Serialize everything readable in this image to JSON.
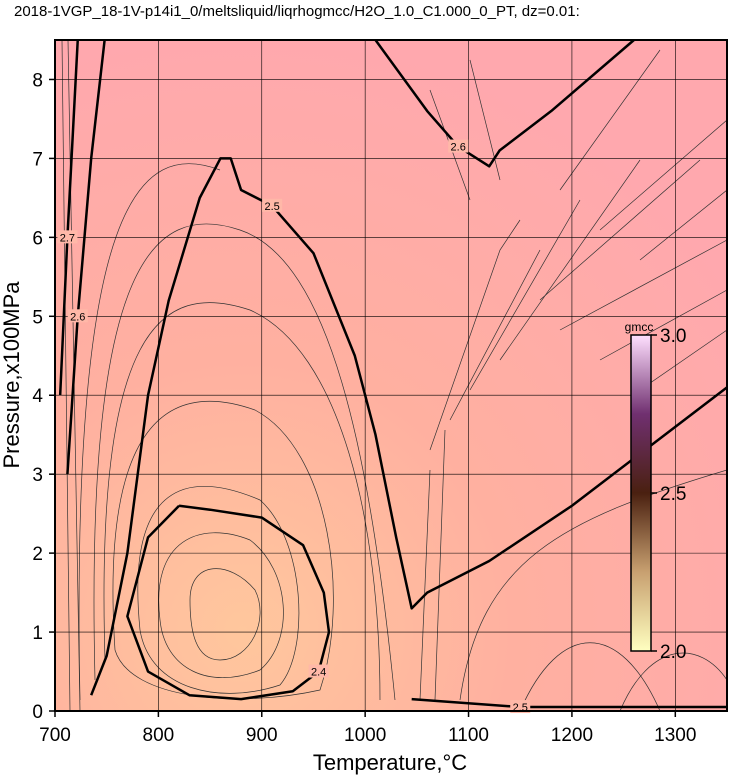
{
  "chart_data": {
    "type": "contour",
    "title": "2018-1VGP_18-1V-p14i1_0/meltsliquid/liqrhogmcc/H2O_1.0_C1.000_0_PT, dz=0.01:",
    "x_label": "Temperature,°C",
    "y_label": "Pressure,x100MPa",
    "xlim": [
      700,
      1350
    ],
    "ylim": [
      0,
      8.5
    ],
    "xticks": [
      700,
      800,
      900,
      1000,
      1100,
      1200,
      1300
    ],
    "yticks": [
      0,
      1,
      2,
      3,
      4,
      5,
      6,
      7,
      8
    ],
    "grid": true,
    "colorbar": {
      "label": "gmcc",
      "lim": [
        2.0,
        3.0
      ],
      "ticks": [
        {
          "value": 2.0,
          "label": "2.0"
        },
        {
          "value": 2.5,
          "label": "2.5"
        },
        {
          "value": 3.0,
          "label": "3.0"
        }
      ]
    },
    "contours": [
      {
        "level": 2.5,
        "x": [
          735,
          750,
          770,
          790,
          810,
          840,
          860,
          870,
          875,
          880,
          910,
          950,
          990,
          1010,
          1030,
          1040,
          1045,
          1060,
          1120,
          1200,
          1280,
          1350
        ],
        "y": [
          0.2,
          0.7,
          2,
          4,
          5.2,
          6.5,
          7,
          7,
          6.8,
          6.6,
          6.4,
          5.8,
          4.5,
          3.5,
          2.2,
          1.6,
          1.3,
          1.5,
          1.9,
          2.6,
          3.4,
          4.1
        ]
      },
      {
        "level": 2.4,
        "x": [
          820,
          850,
          900,
          940,
          960,
          965,
          955,
          930,
          880,
          830,
          790,
          770,
          790,
          820
        ],
        "y": [
          2.6,
          2.55,
          2.45,
          2.1,
          1.5,
          1.0,
          0.5,
          0.25,
          0.15,
          0.2,
          0.5,
          1.2,
          2.2,
          2.6
        ]
      },
      {
        "level": 2.6,
        "x": [
          1010,
          1060,
          1090,
          1120,
          1130,
          1180,
          1260
        ],
        "y": [
          8.5,
          7.6,
          7.15,
          6.9,
          7.1,
          7.6,
          8.5
        ]
      },
      {
        "level": 2.6,
        "x": [
          712,
          722,
          735,
          748
        ],
        "y": [
          3,
          5,
          7,
          8.5
        ]
      },
      {
        "level": 2.7,
        "x": [
          705,
          712,
          722
        ],
        "y": [
          4,
          6,
          8.5
        ]
      },
      {
        "level": 2.5,
        "x": [
          1045,
          1150,
          1350
        ],
        "y": [
          0.15,
          0.05,
          0.05
        ]
      }
    ]
  }
}
